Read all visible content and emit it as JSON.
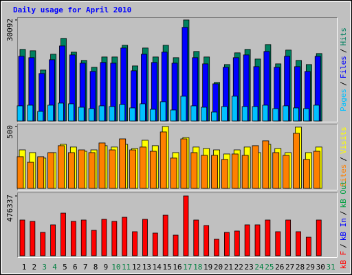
{
  "chart_data": [
    {
      "type": "bar",
      "title": "Daily usage for April 2010",
      "categories": [
        "1",
        "2",
        "3",
        "4",
        "5",
        "6",
        "7",
        "8",
        "9",
        "10",
        "11",
        "12",
        "13",
        "14",
        "15",
        "16",
        "17",
        "18",
        "19",
        "20",
        "21",
        "22",
        "23",
        "24",
        "25",
        "26",
        "27",
        "28",
        "29",
        "30",
        "31"
      ],
      "category_colors": [
        "#000000",
        "#000000",
        "#008040",
        "#008040",
        "#000000",
        "#000000",
        "#000000",
        "#000000",
        "#000000",
        "#008040",
        "#008040",
        "#000000",
        "#000000",
        "#000000",
        "#000000",
        "#000000",
        "#008040",
        "#008040",
        "#000000",
        "#000000",
        "#000000",
        "#000000",
        "#000000",
        "#008040",
        "#008040",
        "#000000",
        "#000000",
        "#000000",
        "#000000",
        "#000000",
        "#008040"
      ],
      "ylim": [
        0,
        30092
      ],
      "yticks": [
        30092
      ],
      "legend_separator": "/",
      "series": [
        {
          "name": "Pages",
          "color": "#00c0ff",
          "values": [
            4510,
            4715,
            2870,
            4715,
            5330,
            5125,
            4100,
            3690,
            4510,
            4305,
            4920,
            3895,
            5125,
            3485,
            5740,
            3280,
            7380,
            4510,
            4100,
            2665,
            4305,
            7380,
            4305,
            4305,
            4715,
            3690,
            4510,
            3895,
            3690,
            4715,
            null
          ]
        },
        {
          "name": "Files",
          "color": "#0000ff",
          "values": [
            19270,
            18860,
            14145,
            18245,
            22345,
            19680,
            17220,
            14760,
            17425,
            17220,
            21730,
            14965,
            19885,
            17425,
            20500,
            17220,
            27880,
            18860,
            17015,
            11070,
            15990,
            18860,
            19680,
            16195,
            20705,
            15990,
            19270,
            16195,
            14760,
            19270,
            null
          ]
        },
        {
          "name": "Hits",
          "color": "#008060",
          "values": [
            21320,
            20910,
            15170,
            19885,
            24600,
            20500,
            18040,
            15990,
            19065,
            19065,
            22550,
            16400,
            21730,
            19065,
            22550,
            18860,
            30092,
            20705,
            19065,
            11480,
            16810,
            20295,
            21320,
            18450,
            22755,
            17015,
            21115,
            18040,
            16810,
            20090,
            null
          ]
        }
      ]
    },
    {
      "type": "bar",
      "ylim": [
        0,
        500
      ],
      "yticks": [
        500
      ],
      "legend_separator": "/",
      "series": [
        {
          "name": "Sites",
          "color": "#ff8000",
          "values": [
            256,
            211,
            256,
            289,
            345,
            289,
            311,
            289,
            367,
            311,
            400,
            311,
            334,
            300,
            456,
            245,
            400,
            289,
            267,
            267,
            234,
            278,
            267,
            345,
            384,
            289,
            267,
            445,
            234,
            300,
            null
          ]
        },
        {
          "name": "Visits",
          "color": "#ffff00",
          "values": [
            311,
            289,
            245,
            289,
            356,
            334,
            300,
            311,
            345,
            334,
            356,
            322,
            389,
            345,
            500,
            289,
            411,
            334,
            322,
            311,
            278,
            311,
            334,
            289,
            356,
            322,
            289,
            495,
            289,
            334,
            null
          ]
        }
      ]
    },
    {
      "type": "bar",
      "ylim": [
        0,
        476337
      ],
      "yticks": [
        476337
      ],
      "legend_separator": "/",
      "series": [
        {
          "name": "kB F",
          "color": "#ff0000",
          "values": [
            284700,
            273750,
            186150,
            246375,
            339450,
            273750,
            284700,
            202575,
            290175,
            273750,
            306600,
            191625,
            290175,
            180675,
            323025,
            164250,
            476337,
            284700,
            240900,
            131400,
            186150,
            197100,
            246375,
            246375,
            284700,
            191625,
            284700,
            191625,
            147825,
            284700,
            null
          ]
        },
        {
          "name": "kB In",
          "color": "#0000ff",
          "values": [
            null,
            null,
            null,
            null,
            null,
            null,
            null,
            null,
            null,
            null,
            null,
            null,
            null,
            null,
            null,
            null,
            null,
            null,
            null,
            null,
            null,
            null,
            null,
            null,
            null,
            null,
            null,
            null,
            null,
            null,
            null
          ]
        },
        {
          "name": "kB Out",
          "color": "#00a040",
          "values": [
            null,
            null,
            null,
            null,
            null,
            null,
            null,
            null,
            null,
            null,
            null,
            null,
            null,
            null,
            null,
            null,
            null,
            null,
            null,
            null,
            null,
            null,
            null,
            null,
            null,
            null,
            null,
            null,
            null,
            null,
            null
          ]
        }
      ]
    }
  ]
}
